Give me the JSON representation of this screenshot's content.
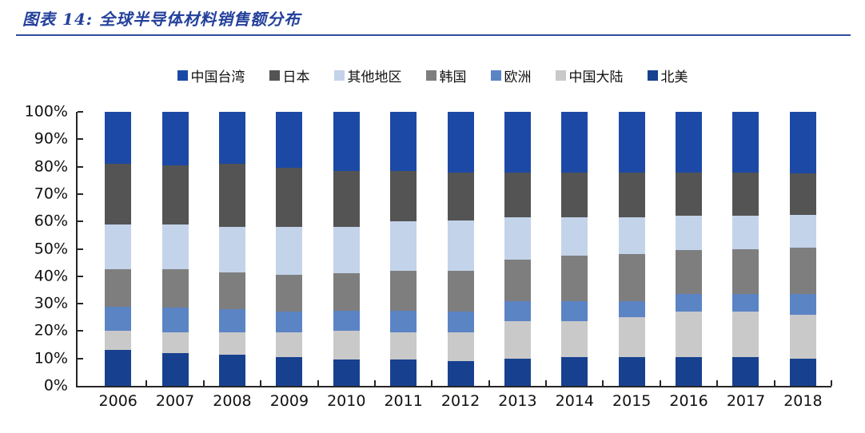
{
  "header": {
    "title": "图表 14: 全球半导体材料销售额分布",
    "title_color": "#24419b",
    "rule_color": "#2e4da1"
  },
  "chart_data": {
    "type": "bar",
    "stacked": true,
    "unit": "percent",
    "title": "全球半导体材料销售额分布",
    "categories": [
      "2006",
      "2007",
      "2008",
      "2009",
      "2010",
      "2011",
      "2012",
      "2013",
      "2014",
      "2015",
      "2016",
      "2017",
      "2018"
    ],
    "series": [
      {
        "id": "taiwan-china",
        "name": "中国台湾",
        "color": "#1c49a6",
        "texture": "none",
        "values": [
          19,
          19.5,
          19,
          20.5,
          21.5,
          21.5,
          22,
          22,
          22,
          22,
          22,
          22,
          22.5
        ]
      },
      {
        "id": "japan",
        "name": "日本",
        "color": "#545454",
        "texture": "none",
        "values": [
          22,
          21.5,
          23,
          21.5,
          20.5,
          18.5,
          17.5,
          16.5,
          16.5,
          16.5,
          16,
          16,
          15
        ]
      },
      {
        "id": "other-regions",
        "name": "其他地区",
        "color": "#c3d3ea",
        "texture": "none",
        "values": [
          16.5,
          16.5,
          16.5,
          17.5,
          17,
          18,
          18.5,
          15.5,
          14,
          13.5,
          12.5,
          12,
          12
        ]
      },
      {
        "id": "korea",
        "name": "韩国",
        "color": "#7e7e7e",
        "texture": "cross",
        "values": [
          13.5,
          14,
          13.5,
          13.5,
          13.5,
          14.5,
          15,
          15,
          16.5,
          17,
          16,
          16.5,
          17
        ]
      },
      {
        "id": "europe",
        "name": "欧洲",
        "color": "#5b84c5",
        "texture": "none",
        "values": [
          9,
          9,
          8.5,
          7.5,
          7.5,
          8,
          7.5,
          7.5,
          7.5,
          6,
          6.5,
          6.5,
          7.5
        ]
      },
      {
        "id": "mainland-china",
        "name": "中国大陆",
        "color": "#c9c9c9",
        "texture": "dots",
        "values": [
          7,
          7.5,
          8,
          9,
          10.5,
          10,
          10.5,
          13.5,
          13,
          14.5,
          16.5,
          16.5,
          16
        ]
      },
      {
        "id": "north-america",
        "name": "北美",
        "color": "#17418f",
        "texture": "none",
        "values": [
          13,
          12,
          11.5,
          10.5,
          9.5,
          9.5,
          9,
          10,
          10.5,
          10.5,
          10.5,
          10.5,
          10
        ]
      }
    ],
    "stack_order_bottom_to_top": [
      "north-america",
      "mainland-china",
      "europe",
      "korea",
      "other-regions",
      "japan",
      "taiwan-china"
    ],
    "y_ticks": [
      "0%",
      "10%",
      "20%",
      "30%",
      "40%",
      "50%",
      "60%",
      "70%",
      "80%",
      "90%",
      "100%"
    ],
    "ylim": [
      0,
      100
    ],
    "grid": false,
    "legend_position": "top",
    "axis_color": "#262626"
  }
}
